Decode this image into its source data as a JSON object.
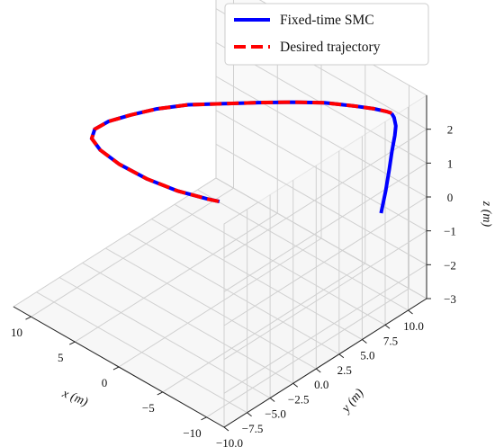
{
  "chart_data": {
    "type": "line3d",
    "title": "",
    "xlabel": "x (m)",
    "ylabel": "y (m)",
    "zlabel": "z (m)",
    "xlim": [
      -12,
      12
    ],
    "ylim": [
      -10,
      12
    ],
    "zlim": [
      -3,
      3
    ],
    "x_ticks": [
      "−10",
      "−5",
      "0",
      "5",
      "10"
    ],
    "y_ticks": [
      "−10.0",
      "−7.5",
      "−5.0",
      "−2.5",
      "0.0",
      "2.5",
      "5.0",
      "7.5",
      "10.0"
    ],
    "z_ticks": [
      "−3",
      "−2",
      "−1",
      "0",
      "1",
      "2"
    ],
    "grid": true,
    "legend_position": "top-right",
    "series": [
      {
        "name": "Fixed-time SMC",
        "color": "#0000ff",
        "style": "solid",
        "points": [
          [
            -10.8,
            8.2,
            0.0
          ],
          [
            -10.9,
            8.6,
            0.6
          ],
          [
            -11.0,
            8.9,
            1.2
          ],
          [
            -11.0,
            9.2,
            1.7
          ],
          [
            -11.0,
            9.5,
            2.1
          ],
          [
            -10.8,
            9.8,
            2.3
          ],
          [
            -10.4,
            10.0,
            2.45
          ],
          [
            -10.0,
            10.1,
            2.5
          ]
        ]
      },
      {
        "name": "Desired trajectory",
        "color": "#ff0000",
        "style": "dashed",
        "points": [
          [
            -10.0,
            10.1,
            2.5
          ],
          [
            -9.9,
            10.1,
            2.5
          ],
          [
            -9.5,
            10.0,
            2.5
          ],
          [
            -8.5,
            9.6,
            2.5
          ],
          [
            -7.0,
            8.8,
            2.5
          ],
          [
            -5.0,
            7.6,
            2.5
          ],
          [
            -3.0,
            6.0,
            2.5
          ],
          [
            -1.0,
            4.2,
            2.5
          ],
          [
            1.0,
            2.3,
            2.5
          ],
          [
            3.0,
            0.4,
            2.5
          ],
          [
            4.5,
            -1.6,
            2.5
          ],
          [
            5.5,
            -3.5,
            2.5
          ],
          [
            6.2,
            -5.2,
            2.5
          ],
          [
            6.3,
            -6.6,
            2.5
          ],
          [
            5.6,
            -7.6,
            2.5
          ],
          [
            4.0,
            -8.2,
            2.5
          ],
          [
            1.5,
            -8.5,
            2.5
          ],
          [
            -1.5,
            -8.4,
            2.5
          ],
          [
            -4.5,
            -7.9,
            2.5
          ],
          [
            -7.0,
            -7.1,
            2.5
          ],
          [
            -8.0,
            -6.7,
            2.5
          ]
        ]
      }
    ]
  }
}
